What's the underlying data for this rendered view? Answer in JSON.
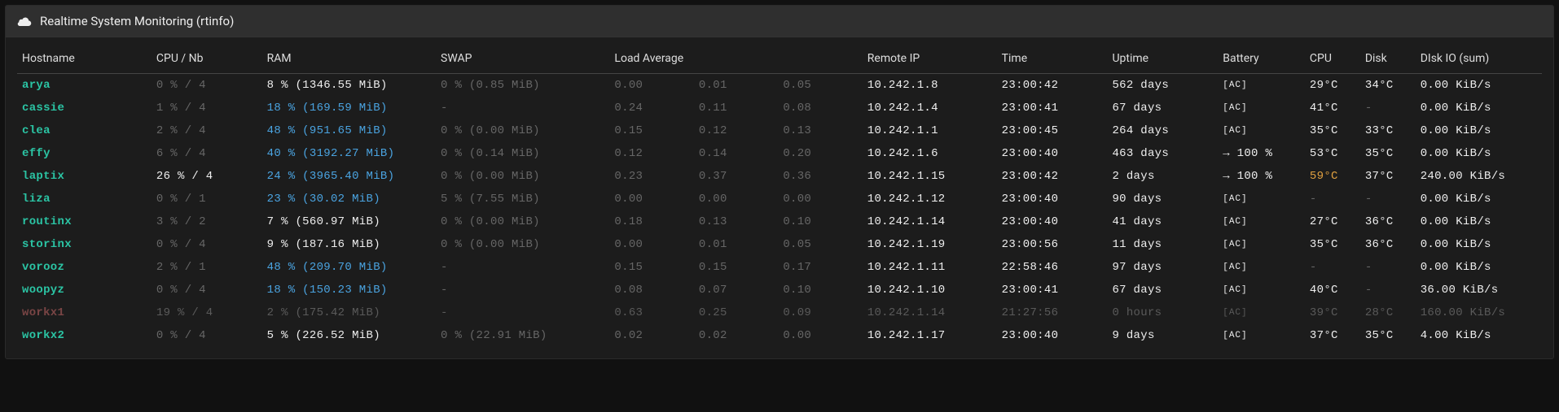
{
  "title": "Realtime System Monitoring (rtinfo)",
  "colors": {
    "hostname_active": "#2bc4a4",
    "hostname_inactive": "#8a4a4a",
    "ram_high": "#4aa3e0",
    "ram_low": "#eeeeee",
    "text_dim": "#666666",
    "text_normal": "#eeeeee",
    "temp_warn": "#e0a040",
    "battery_ac": "#777777"
  },
  "columns": [
    {
      "label": "Hostname",
      "width": "8.5%"
    },
    {
      "label": "CPU / Nb",
      "width": "7%"
    },
    {
      "label": "RAM",
      "width": "11%"
    },
    {
      "label": "SWAP",
      "width": "11%"
    },
    {
      "label": "Load Average",
      "width": "16%",
      "span": 3
    },
    {
      "label": "Remote IP",
      "width": "8.5%"
    },
    {
      "label": "Time",
      "width": "7%"
    },
    {
      "label": "Uptime",
      "width": "7%"
    },
    {
      "label": "Battery",
      "width": "5.5%"
    },
    {
      "label": "CPU",
      "width": "3.5%"
    },
    {
      "label": "Disk",
      "width": "3.5%"
    },
    {
      "label": "DIsk IO (sum)",
      "width": "8%"
    }
  ],
  "rows": [
    {
      "hostname": "arya",
      "dim": false,
      "cpu": "0 %  / 4",
      "cpu_dim": true,
      "ram": "8 % (1346.55 MiB)",
      "ram_hl": false,
      "swap": "0 % (0.85 MiB)",
      "swap_dim": true,
      "la": [
        "0.00",
        "0.01",
        "0.05"
      ],
      "la_dim": true,
      "ip": "10.242.1.8",
      "time": "23:00:42",
      "uptime": "562 days",
      "battery": "[AC]",
      "cput": "29°C",
      "cput_warn": false,
      "diskt": "34°C",
      "io": "0.00 KiB/s"
    },
    {
      "hostname": "cassie",
      "dim": false,
      "cpu": "1 %  / 4",
      "cpu_dim": true,
      "ram": "18 % (169.59 MiB)",
      "ram_hl": true,
      "swap": "-",
      "swap_dim": true,
      "la": [
        "0.24",
        "0.11",
        "0.08"
      ],
      "la_dim": true,
      "ip": "10.242.1.4",
      "time": "23:00:41",
      "uptime": "67 days",
      "battery": "[AC]",
      "cput": "41°C",
      "cput_warn": false,
      "diskt": "-",
      "io": "0.00 KiB/s"
    },
    {
      "hostname": "clea",
      "dim": false,
      "cpu": "2 %  / 4",
      "cpu_dim": true,
      "ram": "48 % (951.65 MiB)",
      "ram_hl": true,
      "swap": "0 % (0.00 MiB)",
      "swap_dim": true,
      "la": [
        "0.15",
        "0.12",
        "0.13"
      ],
      "la_dim": true,
      "ip": "10.242.1.1",
      "time": "23:00:45",
      "uptime": "264 days",
      "battery": "[AC]",
      "cput": "35°C",
      "cput_warn": false,
      "diskt": "33°C",
      "io": "0.00 KiB/s"
    },
    {
      "hostname": "effy",
      "dim": false,
      "cpu": "6 %  / 4",
      "cpu_dim": true,
      "ram": "40 % (3192.27 MiB)",
      "ram_hl": true,
      "swap": "0 % (0.14 MiB)",
      "swap_dim": true,
      "la": [
        "0.12",
        "0.14",
        "0.20"
      ],
      "la_dim": true,
      "ip": "10.242.1.6",
      "time": "23:00:40",
      "uptime": "463 days",
      "battery": "→ 100 %",
      "cput": "53°C",
      "cput_warn": false,
      "diskt": "35°C",
      "io": "0.00 KiB/s"
    },
    {
      "hostname": "laptix",
      "dim": false,
      "cpu": "26 % / 4",
      "cpu_dim": false,
      "ram": "24 % (3965.40 MiB)",
      "ram_hl": true,
      "swap": "0 % (0.00 MiB)",
      "swap_dim": true,
      "la": [
        "0.23",
        "0.37",
        "0.36"
      ],
      "la_dim": true,
      "ip": "10.242.1.15",
      "time": "23:00:42",
      "uptime": "2 days",
      "battery": "→ 100 %",
      "cput": "59°C",
      "cput_warn": true,
      "diskt": "37°C",
      "io": "240.00 KiB/s"
    },
    {
      "hostname": "liza",
      "dim": false,
      "cpu": "0 %  / 1",
      "cpu_dim": true,
      "ram": "23 % (30.02 MiB)",
      "ram_hl": true,
      "swap": "5 % (7.55 MiB)",
      "swap_dim": true,
      "la": [
        "0.00",
        "0.00",
        "0.00"
      ],
      "la_dim": true,
      "ip": "10.242.1.12",
      "time": "23:00:40",
      "uptime": "90 days",
      "battery": "[AC]",
      "cput": "-",
      "cput_warn": false,
      "diskt": "-",
      "io": "0.00 KiB/s"
    },
    {
      "hostname": "routinx",
      "dim": false,
      "cpu": "3 %  / 2",
      "cpu_dim": true,
      "ram": "7 % (560.97 MiB)",
      "ram_hl": false,
      "swap": "0 % (0.00 MiB)",
      "swap_dim": true,
      "la": [
        "0.18",
        "0.13",
        "0.10"
      ],
      "la_dim": true,
      "ip": "10.242.1.14",
      "time": "23:00:40",
      "uptime": "41 days",
      "battery": "[AC]",
      "cput": "27°C",
      "cput_warn": false,
      "diskt": "36°C",
      "io": "0.00 KiB/s"
    },
    {
      "hostname": "storinx",
      "dim": false,
      "cpu": "0 %  / 4",
      "cpu_dim": true,
      "ram": "9 % (187.16 MiB)",
      "ram_hl": false,
      "swap": "0 % (0.00 MiB)",
      "swap_dim": true,
      "la": [
        "0.00",
        "0.01",
        "0.05"
      ],
      "la_dim": true,
      "ip": "10.242.1.19",
      "time": "23:00:56",
      "uptime": "11 days",
      "battery": "[AC]",
      "cput": "35°C",
      "cput_warn": false,
      "diskt": "36°C",
      "io": "0.00 KiB/s"
    },
    {
      "hostname": "vorooz",
      "dim": false,
      "cpu": "2 %  / 1",
      "cpu_dim": true,
      "ram": "48 % (209.70 MiB)",
      "ram_hl": true,
      "swap": "-",
      "swap_dim": true,
      "la": [
        "0.15",
        "0.15",
        "0.17"
      ],
      "la_dim": true,
      "ip": "10.242.1.11",
      "time": "22:58:46",
      "uptime": "97 days",
      "battery": "[AC]",
      "cput": "-",
      "cput_warn": false,
      "diskt": "-",
      "io": "0.00 KiB/s"
    },
    {
      "hostname": "woopyz",
      "dim": false,
      "cpu": "0 %  / 4",
      "cpu_dim": true,
      "ram": "18 % (150.23 MiB)",
      "ram_hl": true,
      "swap": "-",
      "swap_dim": true,
      "la": [
        "0.08",
        "0.07",
        "0.10"
      ],
      "la_dim": true,
      "ip": "10.242.1.10",
      "time": "23:00:41",
      "uptime": "67 days",
      "battery": "[AC]",
      "cput": "40°C",
      "cput_warn": false,
      "diskt": "-",
      "io": "36.00 KiB/s"
    },
    {
      "hostname": "workx1",
      "dim": true,
      "cpu": "19 % / 4",
      "cpu_dim": true,
      "ram": "2 % (175.42 MiB)",
      "ram_hl": false,
      "swap": "-",
      "swap_dim": true,
      "la": [
        "0.63",
        "0.25",
        "0.09"
      ],
      "la_dim": true,
      "ip": "10.242.1.14",
      "time": "21:27:56",
      "uptime": "0 hours",
      "battery": "[AC]",
      "cput": "39°C",
      "cput_warn": false,
      "diskt": "28°C",
      "io": "160.00 KiB/s"
    },
    {
      "hostname": "workx2",
      "dim": false,
      "cpu": "0 %  / 4",
      "cpu_dim": true,
      "ram": "5 % (226.52 MiB)",
      "ram_hl": false,
      "swap": "0 % (22.91 MiB)",
      "swap_dim": true,
      "la": [
        "0.02",
        "0.02",
        "0.00"
      ],
      "la_dim": true,
      "ip": "10.242.1.17",
      "time": "23:00:40",
      "uptime": "9 days",
      "battery": "[AC]",
      "cput": "37°C",
      "cput_warn": false,
      "diskt": "35°C",
      "io": "4.00 KiB/s"
    }
  ]
}
